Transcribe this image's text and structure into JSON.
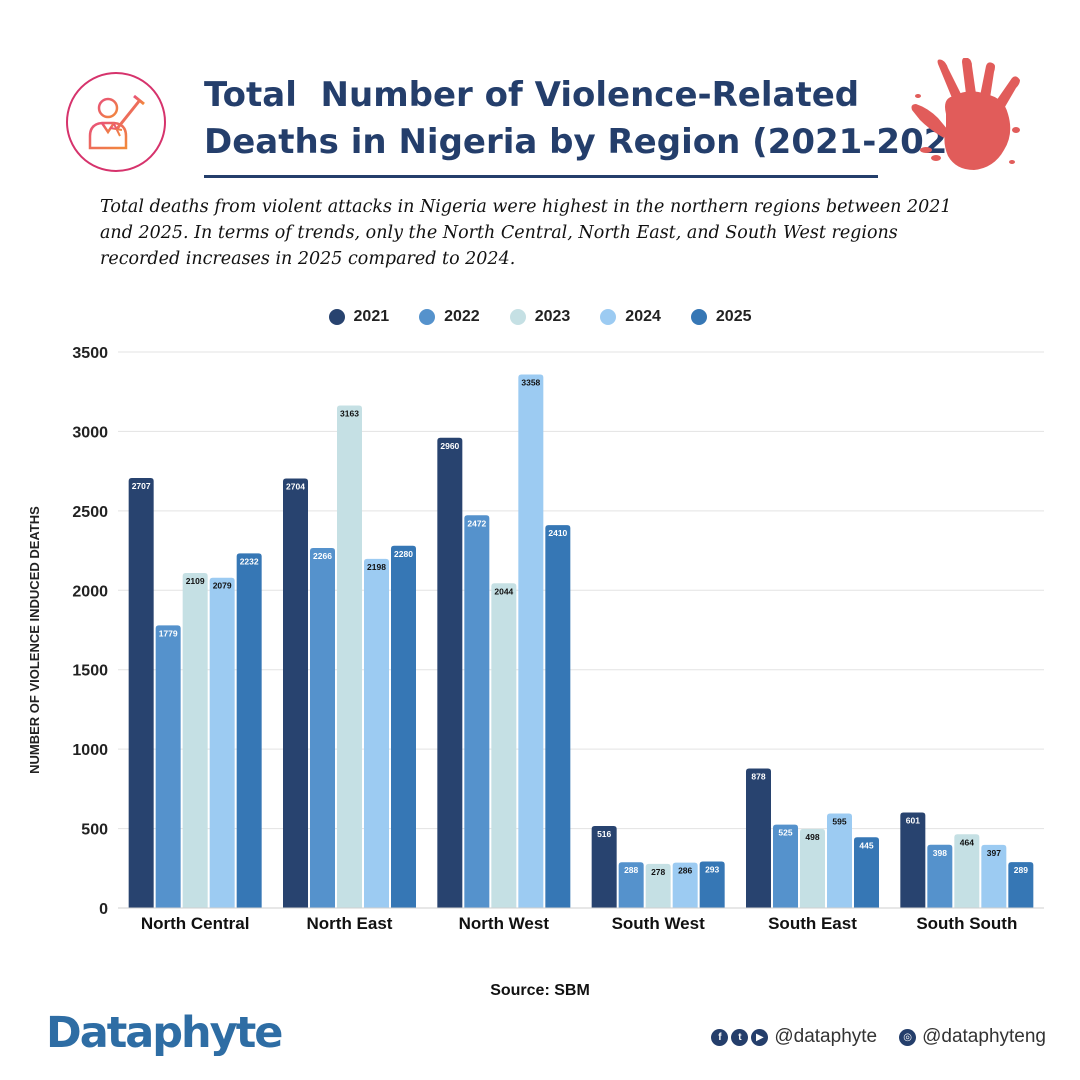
{
  "header": {
    "title": "Total  Number of Violence-Related\nDeaths in Nigeria by Region (2021-2025)",
    "subtitle": "Total deaths from violent attacks in Nigeria were highest in the northern regions between 2021 and 2025. In terms of trends, only the North Central, North East, and South West regions recorded increases in 2025 compared to 2024."
  },
  "chart_data": {
    "type": "bar",
    "categories": [
      "North Central",
      "North East",
      "North West",
      "South West",
      "South East",
      "South South"
    ],
    "series": [
      {
        "name": "2021",
        "color": "#28436f",
        "values": [
          2707,
          2704,
          2960,
          516,
          878,
          601
        ]
      },
      {
        "name": "2022",
        "color": "#5592cc",
        "values": [
          1779,
          2266,
          2472,
          288,
          525,
          398
        ]
      },
      {
        "name": "2023",
        "color": "#c5e0e4",
        "values": [
          2109,
          3163,
          2044,
          278,
          498,
          464
        ]
      },
      {
        "name": "2024",
        "color": "#9ccbf2",
        "values": [
          2079,
          2198,
          3358,
          286,
          595,
          397
        ]
      },
      {
        "name": "2025",
        "color": "#3677b5",
        "values": [
          2232,
          2280,
          2410,
          293,
          445,
          289
        ]
      }
    ],
    "ylabel": "NUMBER OF VIOLENCE INDUCED DEATHS",
    "ylim": [
      0,
      3500
    ],
    "yticks": [
      0,
      500,
      1000,
      1500,
      2000,
      2500,
      3000,
      3500
    ],
    "grid": true,
    "legend": "top-center"
  },
  "footer": {
    "source": "Source: SBM",
    "brand": "Dataphyte",
    "handle_primary": "@dataphyte",
    "handle_secondary": "@dataphyteng"
  }
}
